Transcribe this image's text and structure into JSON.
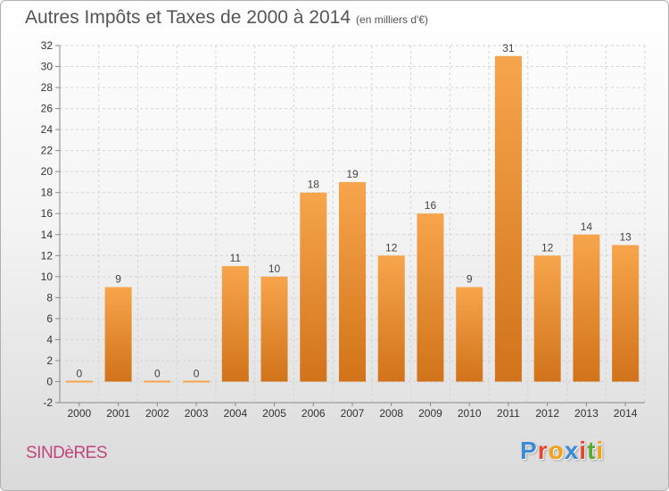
{
  "header": {
    "title": "Autres Impôts et Taxes de 2000 à 2014",
    "unit": "(en milliers d'€)"
  },
  "footer": {
    "city": "SINDèRES",
    "brand": "Proxiti"
  },
  "colors": {
    "bar_light": "#f7a54c",
    "bar_dark": "#d1731a",
    "city": "#c0457c",
    "logo": [
      "#3d8ad6",
      "#e8452e",
      "#f3a012",
      "#3d8ad6",
      "#e8452e",
      "#5aa832",
      "#f3a012"
    ]
  },
  "chart_data": {
    "type": "bar",
    "title": "Autres Impôts et Taxes de 2000 à 2014",
    "subtitle": "(en milliers d'€)",
    "xlabel": "",
    "ylabel": "",
    "categories": [
      "2000",
      "2001",
      "2002",
      "2003",
      "2004",
      "2005",
      "2006",
      "2007",
      "2008",
      "2009",
      "2010",
      "2011",
      "2012",
      "2013",
      "2014"
    ],
    "values": [
      0,
      9,
      0,
      0,
      11,
      10,
      18,
      19,
      12,
      16,
      9,
      31,
      12,
      14,
      13
    ],
    "data_labels": [
      "0",
      "9",
      "0",
      "0",
      "11",
      "10",
      "18",
      "19",
      "12",
      "16",
      "9",
      "31",
      "12",
      "14",
      "13"
    ],
    "ylim": [
      -2,
      32
    ],
    "yticks": [
      -2,
      0,
      2,
      4,
      6,
      8,
      10,
      12,
      14,
      16,
      18,
      20,
      22,
      24,
      26,
      28,
      30,
      32
    ],
    "grid": true,
    "legend": "none"
  }
}
